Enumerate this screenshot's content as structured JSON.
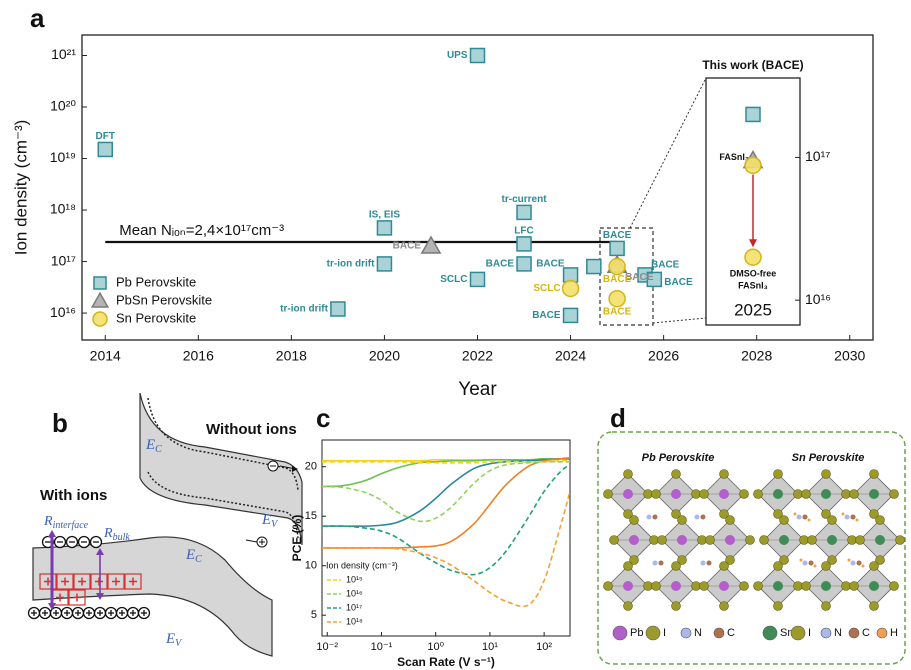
{
  "chart_data": [
    {
      "type": "scatter",
      "panel_label": "a",
      "xlabel": "Year",
      "ylabel": "Ion density (cm⁻³)",
      "xlim": [
        2013.5,
        2030.5
      ],
      "xticks": [
        2014,
        2016,
        2018,
        2020,
        2022,
        2024,
        2026,
        2028,
        2030
      ],
      "yscale": "log",
      "ylim": [
        3000000000000000.0,
        2.5e+21
      ],
      "yticks": [
        {
          "value": 1e+16,
          "label": "10¹⁶"
        },
        {
          "value": 1e+17,
          "label": "10¹⁷"
        },
        {
          "value": 1e+18,
          "label": "10¹⁸"
        },
        {
          "value": 1e+19,
          "label": "10¹⁹"
        },
        {
          "value": 1e+20,
          "label": "10²⁰"
        },
        {
          "value": 1e+21,
          "label": "10²¹"
        }
      ],
      "legend": "lower left",
      "reference_line": {
        "value": 2.4e+17,
        "x": [
          2014,
          2025
        ],
        "label": "Mean Nᵢₒₙ=2,4×10¹⁷cm⁻³"
      },
      "series": [
        {
          "name": "Pb Perovskite",
          "marker": "square",
          "color": "#a9d3d6",
          "edgecolor": "#2f8a95",
          "label_color": "#2f8a95",
          "x": [
            2014,
            2022,
            2020,
            2020,
            2019,
            2022,
            2023,
            2023,
            2023,
            2024,
            2024,
            2024.5,
            2025,
            2025.6,
            2025.8
          ],
          "values": [
            1.5e+19,
            1e+21,
            4.5e+17,
            9e+16,
            1.2e+16,
            4.5e+16,
            9e+17,
            2.2e+17,
            9e+16,
            5.5e+16,
            9000000000000000.0,
            8e+16,
            1.8e+17,
            5.5e+16,
            4.5e+16
          ],
          "point_labels": [
            "DFT",
            "UPS",
            "IS, EIS",
            "tr-ion drift",
            "tr-ion drift",
            "SCLC",
            "tr-current",
            "LFC",
            "BACE",
            "BACE",
            "BACE",
            null,
            "BACE",
            "BACE",
            "BACE"
          ]
        },
        {
          "name": "PbSn Perovskite",
          "marker": "triangle",
          "color": "#b4b4b4",
          "edgecolor": "#7a7a7a",
          "label_color": "#8a8a8a",
          "x": [
            2021,
            2025
          ],
          "values": [
            2e+17,
            8.5e+16
          ],
          "point_labels": [
            "BACE",
            "BACE"
          ]
        },
        {
          "name": "Sn Perovskite",
          "marker": "circle",
          "color": "#f3e06a",
          "edgecolor": "#d4b41a",
          "label_color": "#d8b60c",
          "x": [
            2024,
            2025,
            2025
          ],
          "values": [
            3e+16,
            8e+16,
            1.9e+16
          ],
          "point_labels": [
            "SCLC",
            "BACE",
            "BACE"
          ]
        }
      ]
    },
    {
      "type": "scatter",
      "title": "This work (BACE)",
      "categories": [
        "2025"
      ],
      "yscale": "log",
      "ylim": [
        6700000000000000.0,
        3.6e+17
      ],
      "yticks": [
        {
          "value": 1e+16,
          "label": "10¹⁶"
        },
        {
          "value": 1e+17,
          "label": "10¹⁷"
        }
      ],
      "series": [
        {
          "marker": "square",
          "color": "#a9d3d6",
          "edgecolor": "#2f8a95",
          "values": [
            2e+17
          ]
        },
        {
          "marker": "triangle",
          "color": "#b4b4b4",
          "edgecolor": "#7a7a7a",
          "values": [
            9.5e+16
          ],
          "point_labels": [
            "FASnI₃"
          ]
        },
        {
          "marker": "circle",
          "color": "#f3e06a",
          "edgecolor": "#d4b41a",
          "values": [
            8.8e+16
          ]
        },
        {
          "marker": "circle",
          "color": "#f3e06a",
          "edgecolor": "#d4b41a",
          "values": [
            2e+16
          ],
          "point_labels": [
            [
              "DMSO-free",
              "FASnI₃"
            ]
          ]
        }
      ]
    },
    {
      "type": "line",
      "panel_label": "c",
      "xlabel": "Scan Rate (V s⁻¹)",
      "ylabel": "PCE (%)",
      "xscale": "log",
      "xlim": [
        0.008,
        300
      ],
      "xticks": [
        {
          "value": 0.01,
          "label": "10⁻²"
        },
        {
          "value": 0.1,
          "label": "10⁻¹"
        },
        {
          "value": 1,
          "label": "10⁰"
        },
        {
          "value": 10,
          "label": "10¹"
        },
        {
          "value": 100,
          "label": "10²"
        }
      ],
      "ylim": [
        2.9,
        22.7
      ],
      "yticks": [
        5,
        10,
        15,
        20
      ],
      "legend": "lower left",
      "legend_title": "Ion density (cm⁻³)",
      "x": [
        0.008,
        0.02,
        0.05,
        0.1,
        0.2,
        0.5,
        1,
        2,
        5,
        10,
        20,
        50,
        100,
        200,
        300
      ],
      "series": [
        {
          "color": "#f2d31b",
          "dashed": false,
          "values": [
            20.6,
            20.6,
            20.6,
            20.6,
            20.6,
            20.6,
            20.7,
            20.7,
            20.7,
            20.7,
            20.7,
            20.7,
            20.8,
            20.8,
            20.8
          ]
        },
        {
          "color": "#6cc24a",
          "dashed": false,
          "values": [
            18,
            18.1,
            18.6,
            19.3,
            19.9,
            20.4,
            20.5,
            20.6,
            20.6,
            20.7,
            20.7,
            20.7,
            20.8,
            20.8,
            20.8
          ]
        },
        {
          "color": "#2b87a0",
          "dashed": false,
          "values": [
            14,
            14,
            14,
            14.1,
            14.4,
            15.5,
            16.8,
            18.3,
            19.8,
            20.3,
            20.5,
            20.6,
            20.7,
            20.8,
            20.8
          ]
        },
        {
          "color": "#f07f22",
          "dashed": false,
          "values": [
            11.8,
            11.8,
            11.8,
            11.8,
            11.8,
            11.9,
            12,
            12.5,
            14.2,
            16.2,
            18.2,
            20,
            20.6,
            20.8,
            20.9
          ]
        },
        {
          "name": "10¹⁵",
          "color": "#f2d31b",
          "dashed": true,
          "values": [
            20.5,
            20.5,
            20.5,
            20.5,
            20.5,
            20.4,
            20.4,
            20.4,
            20.4,
            20.5,
            20.5,
            20.5,
            20.5,
            20.6,
            20.6
          ]
        },
        {
          "name": "10¹⁶",
          "color": "#8fd35a",
          "dashed": true,
          "values": [
            18,
            17.9,
            17.4,
            16.6,
            15.4,
            14.5,
            14.8,
            16,
            18.3,
            19.6,
            20.2,
            20.4,
            20.5,
            20.5,
            20.5
          ]
        },
        {
          "name": "10¹⁷",
          "color": "#22a07a",
          "dashed": true,
          "values": [
            14,
            14,
            13.8,
            13.5,
            12.8,
            11.3,
            10.3,
            9.5,
            9.1,
            9.8,
            11.5,
            14.8,
            17.5,
            19.5,
            20.2
          ]
        },
        {
          "name": "10¹⁸",
          "color": "#f5a030",
          "dashed": true,
          "values": [
            11.8,
            11.8,
            11.8,
            11.8,
            11.7,
            11.3,
            10.8,
            10,
            8.5,
            7.3,
            6.4,
            6,
            8.5,
            14,
            17.5
          ]
        }
      ]
    }
  ],
  "diagram_b": {
    "panel_label": "b",
    "without_ions": "Without ions",
    "with_ions": "With ions",
    "band_labels": [
      {
        "symbol": "E",
        "subscript": "C"
      },
      {
        "symbol": "E",
        "subscript": "V"
      },
      {
        "symbol": "E",
        "subscript": "C"
      },
      {
        "symbol": "E",
        "subscript": "V"
      }
    ],
    "resistances": [
      {
        "symbol": "R",
        "subscript": "interface"
      },
      {
        "symbol": "R",
        "subscript": "bulk"
      }
    ]
  },
  "diagram_d": {
    "panel_label": "d",
    "structures": [
      {
        "title": "Pb Perovskite",
        "legend": [
          "Pb",
          "I",
          "N",
          "C"
        ],
        "colors": [
          "#b25fcc",
          "#9c9a2a",
          "#a9b9ec",
          "#b0704e"
        ]
      },
      {
        "title": "Sn Perovskite",
        "legend": [
          "Sn",
          "I",
          "N",
          "C",
          "H"
        ],
        "colors": [
          "#3f8c58",
          "#9c9a2a",
          "#a9b9ec",
          "#b0704e",
          "#f0a050"
        ]
      }
    ]
  }
}
